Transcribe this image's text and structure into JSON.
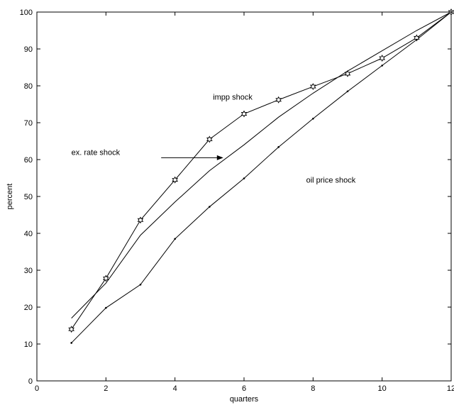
{
  "chart_data": {
    "type": "line",
    "title": "",
    "xlabel": "quarters",
    "ylabel": "percent",
    "xlim": [
      0,
      12
    ],
    "ylim": [
      0,
      100
    ],
    "xticks": [
      0,
      2,
      4,
      6,
      8,
      10,
      12
    ],
    "yticks": [
      0,
      10,
      20,
      30,
      40,
      50,
      60,
      70,
      80,
      90,
      100
    ],
    "grid": false,
    "legend": "none",
    "series": [
      {
        "marker": "star",
        "x": [
          1,
          2,
          3,
          4,
          5,
          6,
          7,
          8,
          9,
          10,
          11,
          12
        ],
        "y": [
          14,
          27.8,
          43.6,
          54.5,
          65.5,
          72.4,
          76.2,
          79.8,
          83.3,
          87.5,
          93,
          100
        ]
      },
      {
        "marker": "none",
        "x": [
          1,
          2,
          3,
          4,
          5,
          6,
          7,
          8,
          9,
          10,
          11,
          12
        ],
        "y": [
          17,
          26.5,
          39.5,
          48.5,
          57,
          64,
          71.5,
          78,
          84,
          89.5,
          95,
          100
        ]
      },
      {
        "marker": "dot",
        "x": [
          1,
          2,
          3,
          4,
          5,
          6,
          7,
          8,
          9,
          10,
          11,
          12
        ],
        "y": [
          10.3,
          19.8,
          26.1,
          38.5,
          47.2,
          54.9,
          63.4,
          71.1,
          78.5,
          85.5,
          92.5,
          100
        ]
      }
    ],
    "annotations": [
      {
        "text": "impp shock",
        "x": 5.1,
        "y": 77
      },
      {
        "text": "ex. rate shock",
        "x": 1.0,
        "y": 62
      },
      {
        "text": "oil price shock",
        "x": 7.8,
        "y": 54.5
      }
    ],
    "arrow": {
      "from": [
        3.6,
        60.5
      ],
      "to": [
        5.4,
        60.5
      ]
    }
  }
}
